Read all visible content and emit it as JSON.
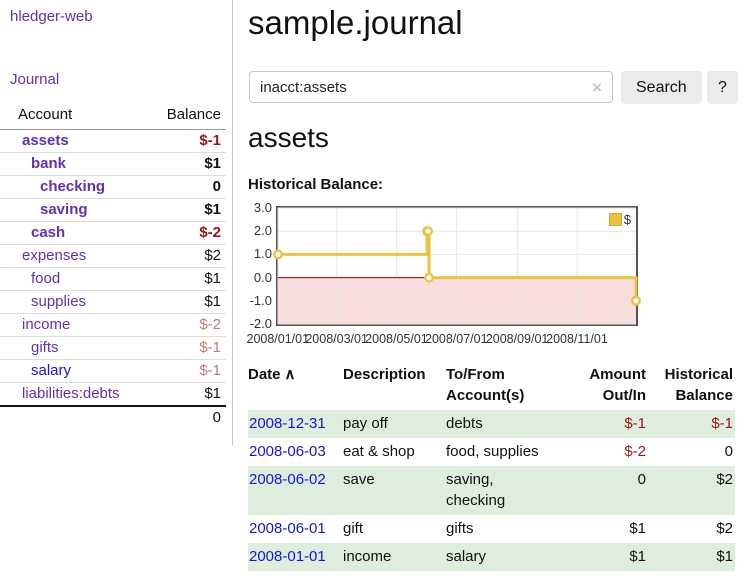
{
  "app": {
    "title": "hledger-web"
  },
  "sidebar": {
    "journal_label": "Journal",
    "accounts": {
      "headers": {
        "account": "Account",
        "balance": "Balance"
      },
      "rows": [
        {
          "name": "assets",
          "balance": "$-1"
        },
        {
          "name": "bank",
          "balance": "$1"
        },
        {
          "name": "checking",
          "balance": "0"
        },
        {
          "name": "saving",
          "balance": "$1"
        },
        {
          "name": "cash",
          "balance": "$-2"
        },
        {
          "name": "expenses",
          "balance": "$2"
        },
        {
          "name": "food",
          "balance": "$1"
        },
        {
          "name": "supplies",
          "balance": "$1"
        },
        {
          "name": "income",
          "balance": "$-2"
        },
        {
          "name": "gifts",
          "balance": "$-1"
        },
        {
          "name": "salary",
          "balance": "$-1"
        },
        {
          "name": "liabilities:debts",
          "balance": "$1"
        }
      ],
      "total": "0"
    }
  },
  "main": {
    "title": "sample.journal",
    "search": {
      "value": "inacct:assets",
      "clear_icon": "×",
      "button_label": "Search",
      "help_label": "?"
    },
    "account_heading": "assets",
    "chart_label": "Historical Balance:"
  },
  "chart_data": {
    "type": "line",
    "step": true,
    "title": "Historical Balance",
    "legend_label": "$",
    "legend_position": "top-right",
    "x_range": [
      "2008-01-01",
      "2008-12-31"
    ],
    "ylim": [
      -2,
      3
    ],
    "x_ticks": [
      "2008/01/01",
      "2008/03/01",
      "2008/05/01",
      "2008/07/01",
      "2008/09/01",
      "2008/11/01"
    ],
    "y_ticks": [
      "3.0",
      "2.0",
      "1.0",
      "0.0",
      "-1.0",
      "-2.0"
    ],
    "series": [
      {
        "name": "$",
        "points": [
          [
            "2008-01-01",
            1
          ],
          [
            "2008-06-01",
            2
          ],
          [
            "2008-06-02",
            2
          ],
          [
            "2008-06-03",
            0
          ],
          [
            "2008-12-31",
            -1
          ]
        ]
      }
    ],
    "line_color": "#edc240",
    "marker_fill": "#ffffff",
    "negative_fill": "#f8dddd",
    "zero_line_color": "#8b0000",
    "grid_color": "#e6e6e6",
    "border_color": "#545454",
    "grid": true
  },
  "register": {
    "headers": {
      "date": "Date",
      "sort_arrow": "∧",
      "description": "Description",
      "accounts": "To/From Account(s)",
      "amount": "Amount Out/In",
      "balance": "Historical Balance"
    },
    "rows": [
      {
        "date": "2008-12-31",
        "description": "pay off",
        "accounts": "debts",
        "amount": "$-1",
        "balance": "$-1"
      },
      {
        "date": "2008-06-03",
        "description": "eat & shop",
        "accounts": "food, supplies",
        "amount": "$-2",
        "balance": "0"
      },
      {
        "date": "2008-06-02",
        "description": "save",
        "accounts": "saving, checking",
        "amount": "0",
        "balance": "$2"
      },
      {
        "date": "2008-06-01",
        "description": "gift",
        "accounts": "gifts",
        "amount": "$1",
        "balance": "$2"
      },
      {
        "date": "2008-01-01",
        "description": "income",
        "accounts": "salary",
        "amount": "$1",
        "balance": "$1"
      }
    ]
  }
}
